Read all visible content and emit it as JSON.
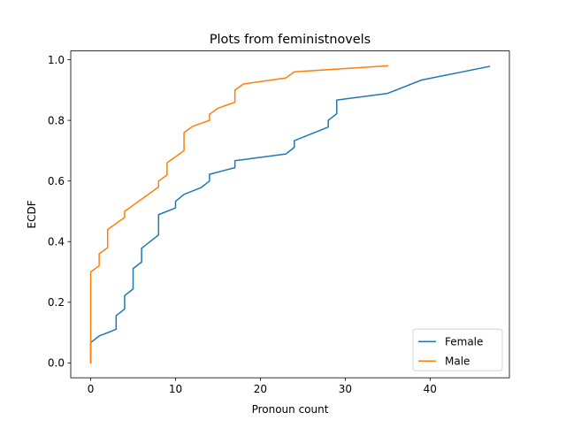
{
  "chart_data": {
    "type": "line",
    "title": "Plots from feministnovels",
    "xlabel": "Pronoun count",
    "ylabel": "ECDF",
    "xlim": [
      -2.35,
      49.35
    ],
    "ylim": [
      -0.049,
      1.029
    ],
    "xticks": [
      0,
      10,
      20,
      30,
      40
    ],
    "yticks": [
      0.0,
      0.2,
      0.4,
      0.6,
      0.8,
      1.0
    ],
    "xtick_labels": [
      "0",
      "10",
      "20",
      "30",
      "40"
    ],
    "ytick_labels": [
      "0.0",
      "0.2",
      "0.4",
      "0.6",
      "0.8",
      "1.0"
    ],
    "grid": false,
    "legend_position": "lower-right",
    "series": [
      {
        "name": "Female",
        "color": "#1f77b4",
        "x": [
          0,
          0,
          1,
          3,
          3,
          4,
          4,
          5,
          5,
          6,
          6,
          8,
          8,
          10,
          10,
          11,
          13,
          14,
          14,
          17,
          17,
          23,
          24,
          24,
          28,
          28,
          29,
          29,
          35,
          39,
          47
        ],
        "y": [
          0.0,
          0.067,
          0.089,
          0.111,
          0.156,
          0.178,
          0.222,
          0.244,
          0.311,
          0.333,
          0.378,
          0.422,
          0.489,
          0.511,
          0.533,
          0.556,
          0.578,
          0.6,
          0.622,
          0.644,
          0.667,
          0.689,
          0.711,
          0.733,
          0.778,
          0.8,
          0.822,
          0.867,
          0.889,
          0.933,
          0.978
        ]
      },
      {
        "name": "Male",
        "color": "#ff7f0e",
        "x": [
          0,
          0,
          1,
          1,
          2,
          2,
          4,
          4,
          8,
          8,
          9,
          9,
          11,
          11,
          12,
          14,
          14,
          15,
          17,
          17,
          18,
          23,
          24,
          35
        ],
        "y": [
          0.0,
          0.3,
          0.32,
          0.36,
          0.38,
          0.44,
          0.48,
          0.5,
          0.58,
          0.6,
          0.62,
          0.66,
          0.7,
          0.76,
          0.78,
          0.8,
          0.82,
          0.84,
          0.86,
          0.9,
          0.92,
          0.94,
          0.96,
          0.98
        ]
      }
    ]
  }
}
